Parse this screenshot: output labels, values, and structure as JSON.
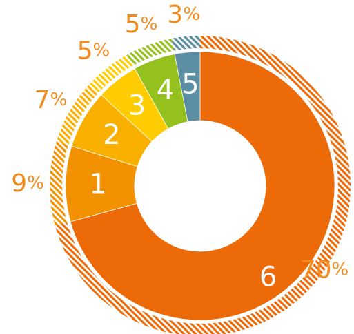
{
  "chart_data": {
    "type": "pie",
    "slices": [
      {
        "label": "6",
        "value": 70,
        "percent_label": "70",
        "color": "#ec6a07"
      },
      {
        "label": "1",
        "value": 9,
        "percent_label": "9",
        "color": "#f39200"
      },
      {
        "label": "2",
        "value": 7,
        "percent_label": "7",
        "color": "#f9b000"
      },
      {
        "label": "3",
        "value": 5,
        "percent_label": "5",
        "color": "#ffcc00"
      },
      {
        "label": "4",
        "value": 5,
        "percent_label": "5",
        "color": "#95c11f"
      },
      {
        "label": "5",
        "value": 3,
        "percent_label": "3",
        "color": "#5b8da3"
      }
    ],
    "percent_sign": "%",
    "percent_color": "#f28c1e"
  }
}
